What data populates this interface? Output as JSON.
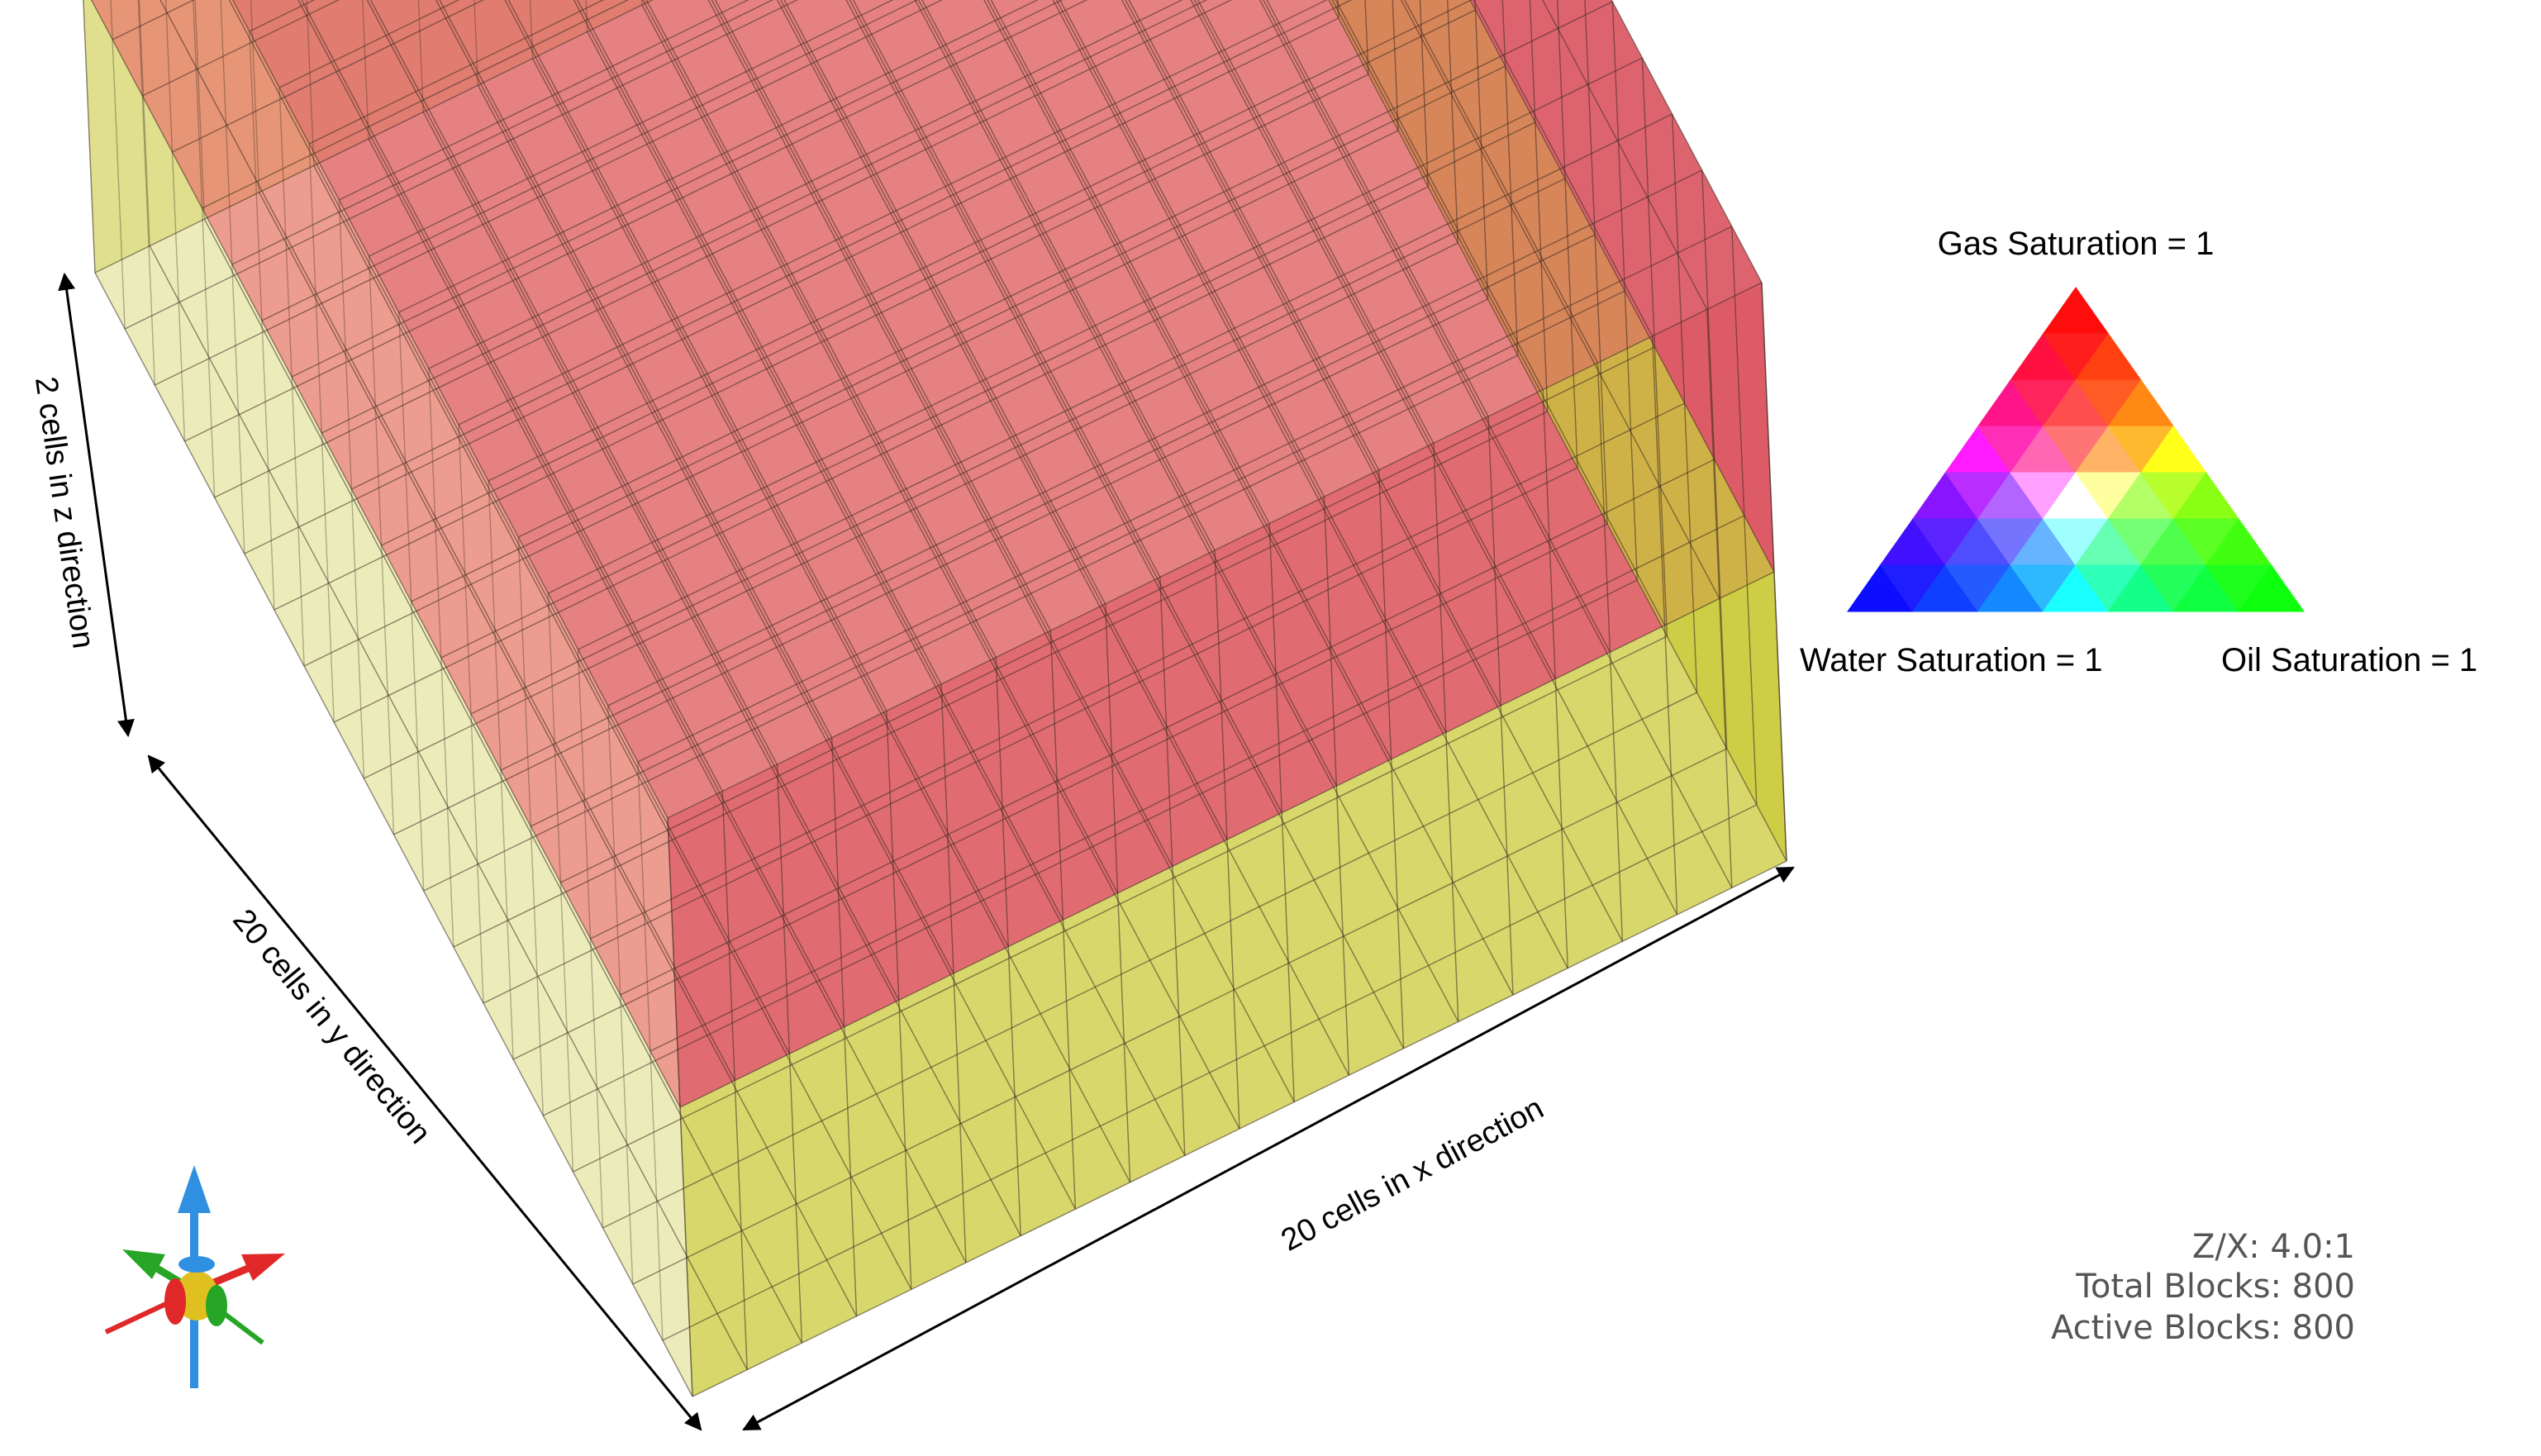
{
  "grid": {
    "nx": 20,
    "ny": 20,
    "nz": 2,
    "top_layer_color": "#d9505c",
    "bottom_layer_color": "#c9c93a",
    "mixed_face_color": "#e6704c",
    "grid_line_color": "#3a2a20"
  },
  "dimension_labels": {
    "z": "2 cells in z direction",
    "y": "20 cells in y direction",
    "x": "20 cells in x direction"
  },
  "ternary_legend": {
    "gas_label": "Gas Saturation  = 1",
    "water_label": "Water Saturation = 1",
    "oil_label": "Oil Saturation = 1",
    "subdivisions": 7,
    "gas_color": "#ff0000",
    "water_color": "#0000ff",
    "oil_color": "#00ff00"
  },
  "info_panel": {
    "ratio": "Z/X: 4.0:1",
    "total_blocks": "Total Blocks: 800",
    "active_blocks": "Active Blocks: 800"
  },
  "axis_triad": {
    "z_color": "#2f8fe0",
    "x_color": "#e02828",
    "y_color": "#27a527",
    "center_color": "#e0c020"
  }
}
